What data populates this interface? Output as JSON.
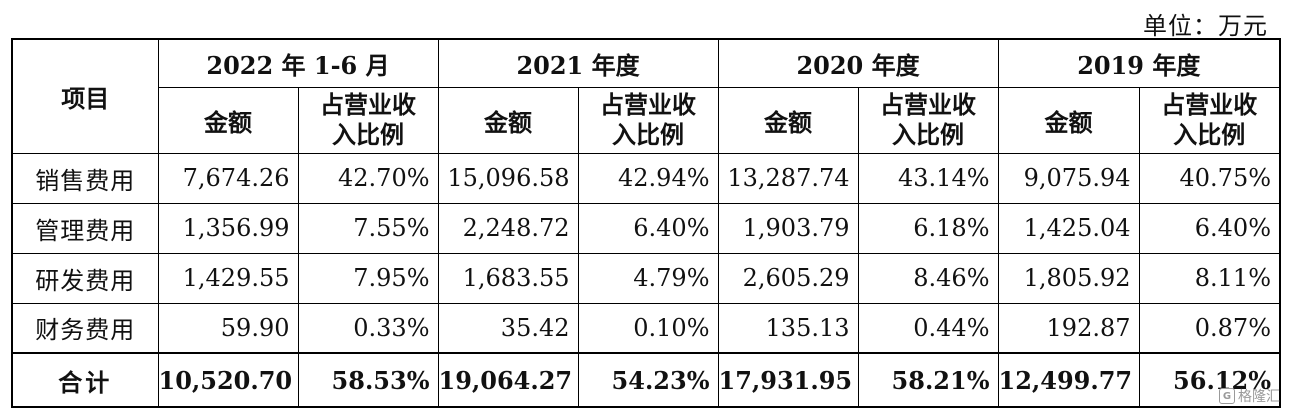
{
  "unit_label": "单位：万元",
  "header": {
    "item_label": "项目",
    "periods": [
      "2022 年 1-6 月",
      "2021 年度",
      "2020 年度",
      "2019 年度"
    ],
    "amount_label": "金额",
    "ratio_label_line1": "占营业收",
    "ratio_label_line2": "入比例"
  },
  "rows": [
    {
      "label": "销售费用",
      "cells": [
        "7,674.26",
        "42.70%",
        "15,096.58",
        "42.94%",
        "13,287.74",
        "43.14%",
        "9,075.94",
        "40.75%"
      ]
    },
    {
      "label": "管理费用",
      "cells": [
        "1,356.99",
        "7.55%",
        "2,248.72",
        "6.40%",
        "1,903.79",
        "6.18%",
        "1,425.04",
        "6.40%"
      ]
    },
    {
      "label": "研发费用",
      "cells": [
        "1,429.55",
        "7.95%",
        "1,683.55",
        "4.79%",
        "2,605.29",
        "8.46%",
        "1,805.92",
        "8.11%"
      ]
    },
    {
      "label": "财务费用",
      "cells": [
        "59.90",
        "0.33%",
        "35.42",
        "0.10%",
        "135.13",
        "0.44%",
        "192.87",
        "0.87%"
      ]
    }
  ],
  "total": {
    "label": "合计",
    "cells": [
      "10,520.70",
      "58.53%",
      "19,064.27",
      "54.23%",
      "17,931.95",
      "58.21%",
      "12,499.77",
      "56.12%"
    ]
  },
  "watermark": {
    "text": "格隆汇",
    "icon": "gelonghui-logo-icon"
  }
}
